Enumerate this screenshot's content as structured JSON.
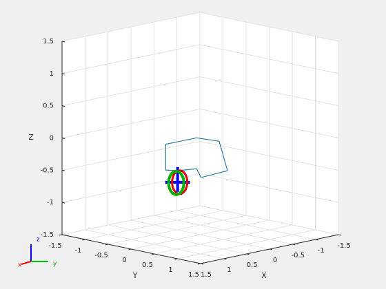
{
  "chart_data": {
    "type": "line3d",
    "xlabel": "X",
    "ylabel": "Y",
    "zlabel": "Z",
    "xlim": [
      -1.5,
      1.5
    ],
    "ylim": [
      -1.5,
      1.5
    ],
    "zlim": [
      -1.5,
      1.5
    ],
    "xticks": [
      -1.5,
      -1,
      -0.5,
      0,
      0.5,
      1,
      1.5
    ],
    "yticks": [
      -1.5,
      -1,
      -0.5,
      0,
      0.5,
      1,
      1.5
    ],
    "zticks": [
      -1.5,
      -1,
      -0.5,
      0,
      0.5,
      1,
      1.5
    ],
    "grid": true,
    "series": [
      {
        "color": "#2a7f9e",
        "x": [
          0,
          0,
          0,
          0,
          0,
          0,
          0,
          0,
          0,
          0
        ],
        "y": [
          -0.49,
          -0.49,
          -0.75,
          -0.75,
          -0.08,
          0.41,
          0.59,
          0.02,
          -0.08,
          -0.49
        ],
        "z": [
          -0.76,
          -0.58,
          -0.61,
          -0.21,
          -0.01,
          0.01,
          -0.42,
          -0.61,
          -0.49,
          -0.58
        ]
      }
    ],
    "triad": {
      "x": "x",
      "y": "y",
      "z": "z"
    }
  }
}
